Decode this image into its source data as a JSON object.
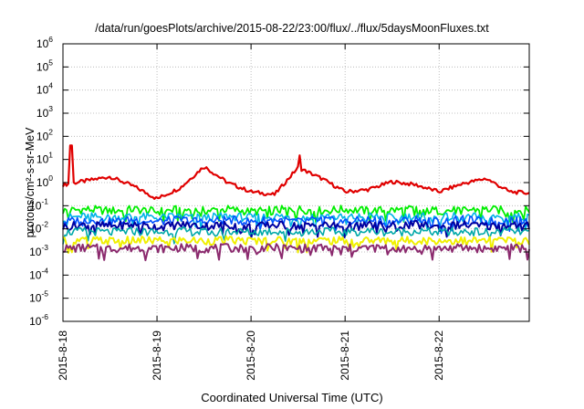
{
  "chart_data": {
    "type": "line",
    "title": "/data/run/goesPlots/archive/2015-08-22/23:00/flux/../flux/5daysMoonFluxes.txt",
    "xlabel": "Coordinated Universal Time (UTC)",
    "ylabel": "protons/cm²-s-sr-MeV",
    "x_ticks": [
      "2015-8-18",
      "2015-8-19",
      "2015-8-20",
      "2015-8-21",
      "2015-8-22"
    ],
    "xlim": [
      "2015-08-18T00:00",
      "2015-08-22T23:00"
    ],
    "y_scale": "log",
    "ylim": [
      1e-06,
      1000000.0
    ],
    "y_tick_exponents": [
      -6,
      -5,
      -4,
      -3,
      -2,
      -1,
      0,
      1,
      2,
      3,
      4,
      5,
      6
    ],
    "y_tick_base": "10",
    "grid": true,
    "x_days": [
      0,
      0.25,
      0.5,
      0.75,
      1,
      1.25,
      1.5,
      1.75,
      2,
      2.25,
      2.5,
      2.75,
      3,
      3.25,
      3.5,
      3.75,
      4,
      4.25,
      4.5,
      4.75,
      4.958
    ],
    "series": [
      {
        "color": "#e00000",
        "width": 2.2,
        "values": [
          0.8,
          1.2,
          1.8,
          0.7,
          0.2,
          0.6,
          5.0,
          1.0,
          0.4,
          0.3,
          4.5,
          1.5,
          0.4,
          0.5,
          1.1,
          0.8,
          0.4,
          0.9,
          1.5,
          0.4,
          0.35
        ],
        "spikes": [
          {
            "x": 0.085,
            "y": 40
          },
          {
            "x": 2.52,
            "y": 15
          }
        ]
      },
      {
        "color": "#00ee00",
        "width": 1.8,
        "values": [
          0.06,
          0.07,
          0.06,
          0.07,
          0.055,
          0.07,
          0.06,
          0.07,
          0.055,
          0.065,
          0.07,
          0.06,
          0.07,
          0.06,
          0.065,
          0.07,
          0.06,
          0.065,
          0.07,
          0.06,
          0.065
        ]
      },
      {
        "color": "#00b4e6",
        "width": 1.6,
        "values": [
          0.03,
          0.035,
          0.03,
          0.035,
          0.03,
          0.035,
          0.03,
          0.035,
          0.03,
          0.035,
          0.03,
          0.035,
          0.03,
          0.035,
          0.03,
          0.035,
          0.03,
          0.035,
          0.03,
          0.035,
          0.03
        ]
      },
      {
        "color": "#0050ff",
        "width": 1.6,
        "values": [
          0.02,
          0.025,
          0.02,
          0.025,
          0.02,
          0.025,
          0.02,
          0.025,
          0.02,
          0.025,
          0.02,
          0.025,
          0.02,
          0.025,
          0.02,
          0.025,
          0.02,
          0.025,
          0.02,
          0.025,
          0.02
        ]
      },
      {
        "color": "#0000a0",
        "width": 2.0,
        "values": [
          0.012,
          0.015,
          0.013,
          0.015,
          0.012,
          0.015,
          0.013,
          0.015,
          0.012,
          0.015,
          0.013,
          0.015,
          0.012,
          0.015,
          0.013,
          0.015,
          0.012,
          0.015,
          0.013,
          0.015,
          0.013
        ]
      },
      {
        "color": "#00a8a8",
        "width": 1.6,
        "values": [
          0.007,
          0.008,
          0.007,
          0.008,
          0.007,
          0.008,
          0.007,
          0.008,
          0.007,
          0.008,
          0.007,
          0.008,
          0.007,
          0.008,
          0.007,
          0.008,
          0.007,
          0.008,
          0.007,
          0.008,
          0.007
        ]
      },
      {
        "color": "#f0f000",
        "width": 2.0,
        "values": [
          0.003,
          0.0032,
          0.003,
          0.0032,
          0.003,
          0.0032,
          0.003,
          0.0032,
          0.003,
          0.0032,
          0.003,
          0.0032,
          0.003,
          0.0032,
          0.003,
          0.0032,
          0.003,
          0.0032,
          0.003,
          0.0032,
          0.003
        ]
      },
      {
        "color": "#8b2a6e",
        "width": 2.0,
        "values": [
          0.0014,
          0.0015,
          0.0014,
          0.0015,
          0.0014,
          0.0015,
          0.0014,
          0.0015,
          0.0014,
          0.0015,
          0.0014,
          0.0015,
          0.0014,
          0.0015,
          0.0014,
          0.0015,
          0.0014,
          0.0015,
          0.0014,
          0.0015,
          0.0014
        ]
      }
    ]
  }
}
